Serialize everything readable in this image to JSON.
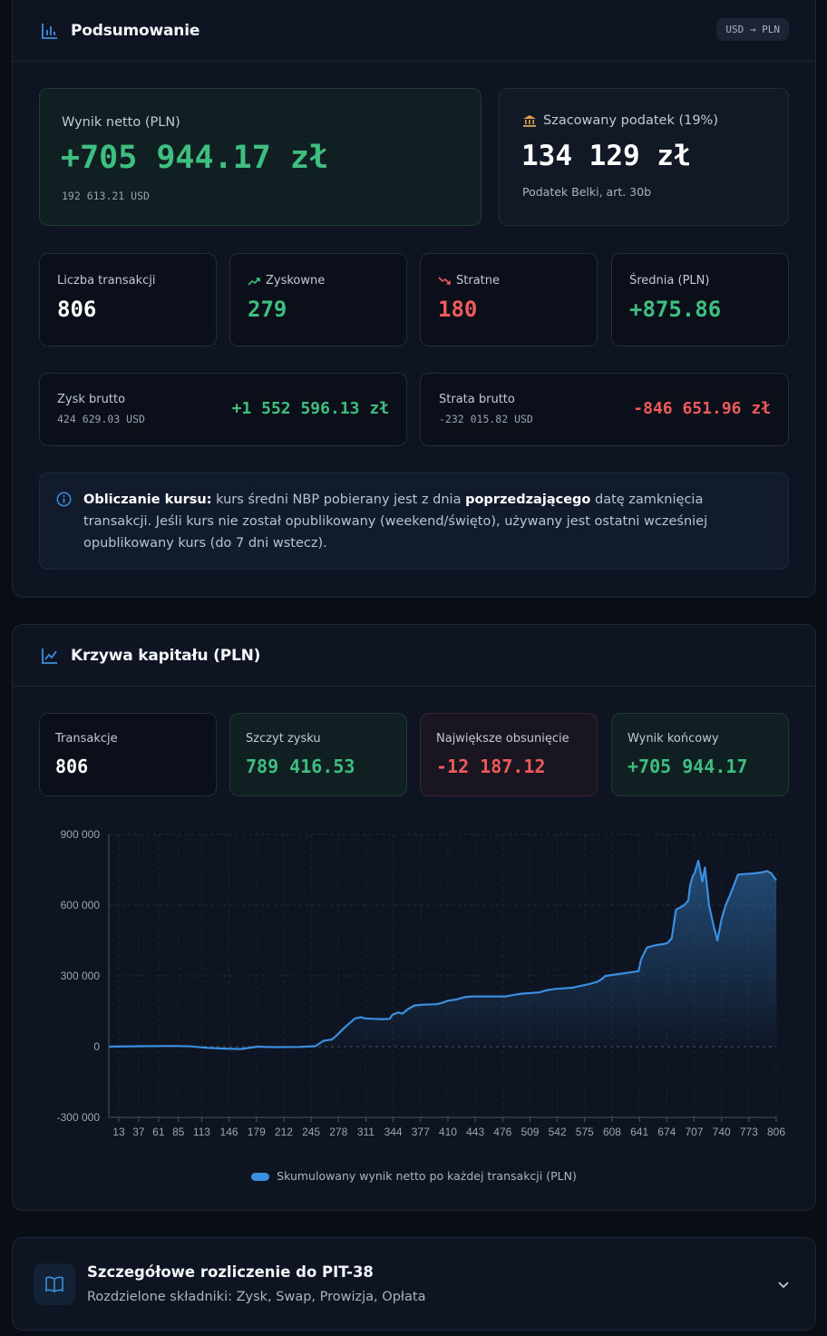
{
  "summary": {
    "title": "Podsumowanie",
    "currency_badge": "USD → PLN",
    "net": {
      "label": "Wynik netto (PLN)",
      "value": "+705 944.17 zł",
      "usd": "192 613.21 USD"
    },
    "tax": {
      "label": "Szacowany podatek (19%)",
      "value": "134 129 zł",
      "note": "Podatek Belki, art. 30b"
    },
    "stats": [
      {
        "label": "Liczba transakcji",
        "value": "806"
      },
      {
        "label": "Zyskowne",
        "value": "279"
      },
      {
        "label": "Stratne",
        "value": "180"
      },
      {
        "label": "Średnia (PLN)",
        "value": "+875.86"
      }
    ],
    "gross_profit": {
      "label": "Zysk brutto",
      "usd": "424 629.03 USD",
      "value": "+1 552 596.13 zł"
    },
    "gross_loss": {
      "label": "Strata brutto",
      "usd": "-232 015.82 USD",
      "value": "-846 651.96 zł"
    },
    "info": {
      "bold1": "Obliczanie kursu:",
      "text1": " kurs średni NBP pobierany jest z dnia ",
      "bold2": "poprzedzającego",
      "text2": " datę zamknięcia transakcji. Jeśli kurs nie został opublikowany (weekend/święto), używany jest ostatni wcześniej opublikowany kurs (do 7 dni wstecz)."
    }
  },
  "equity": {
    "title": "Krzywa kapitału (PLN)",
    "stats": [
      {
        "label": "Transakcje",
        "value": "806"
      },
      {
        "label": "Szczyt zysku",
        "value": "789 416.53"
      },
      {
        "label": "Największe obsunięcie",
        "value": "-12 187.12"
      },
      {
        "label": "Wynik końcowy",
        "value": "+705 944.17"
      }
    ],
    "legend": "Skumulowany wynik netto po każdej transakcji (PLN)"
  },
  "pit": {
    "title": "Szczegółowe rozliczenie do PIT-38",
    "subtitle": "Rozdzielone składniki: Zysk, Swap, Prowizja, Opłata"
  },
  "colors": {
    "accent_blue": "#3b8fe0",
    "positive": "#3fbf7f",
    "negative": "#ef5a5a",
    "tax_icon": "#e0a04a"
  },
  "icons": {
    "summary": "bar-chart-icon",
    "trend_up": "trend-up-icon",
    "trend_down": "trend-down-icon",
    "bank": "bank-icon",
    "info": "info-icon",
    "equity": "line-chart-icon",
    "book": "book-icon",
    "chevron": "chevron-down-icon"
  },
  "chart_data": {
    "type": "area",
    "title": "",
    "xlabel": "",
    "ylabel": "",
    "ylim": [
      -300000,
      900000
    ],
    "yticks": [
      -300000,
      0,
      300000,
      600000,
      900000
    ],
    "ytick_labels": [
      "-300 000",
      "0",
      "300 000",
      "600 000",
      "900 000"
    ],
    "xlim": [
      1,
      806
    ],
    "xticks": [
      13,
      37,
      61,
      85,
      113,
      146,
      179,
      212,
      245,
      278,
      311,
      344,
      377,
      410,
      443,
      476,
      509,
      542,
      575,
      608,
      641,
      674,
      707,
      740,
      773,
      806
    ],
    "grid": true,
    "legend_position": "bottom",
    "series": [
      {
        "name": "Skumulowany wynik netto po każdej transakcji (PLN)",
        "color": "#3b8fe0",
        "x": [
          1,
          40,
          80,
          100,
          120,
          140,
          160,
          180,
          200,
          230,
          250,
          260,
          270,
          275,
          285,
          290,
          298,
          305,
          310,
          320,
          330,
          340,
          343,
          350,
          355,
          362,
          370,
          380,
          395,
          400,
          405,
          410,
          420,
          430,
          440,
          460,
          480,
          490,
          500,
          520,
          530,
          540,
          560,
          580,
          585,
          590,
          595,
          600,
          620,
          640,
          643,
          650,
          660,
          670,
          675,
          680,
          685,
          690,
          695,
          700,
          702,
          705,
          708,
          712,
          717,
          720,
          725,
          730,
          735,
          740,
          745,
          750,
          760,
          780,
          790,
          795,
          800,
          806
        ],
        "y": [
          0,
          2000,
          3000,
          1000,
          -5000,
          -8000,
          -10000,
          0,
          -2000,
          -1000,
          2000,
          25000,
          30000,
          45000,
          80000,
          95000,
          120000,
          125000,
          120000,
          118000,
          117000,
          118000,
          135000,
          145000,
          140000,
          160000,
          175000,
          178000,
          180000,
          183000,
          188000,
          195000,
          200000,
          210000,
          213000,
          213000,
          213000,
          220000,
          225000,
          230000,
          240000,
          245000,
          250000,
          265000,
          270000,
          275000,
          285000,
          300000,
          310000,
          320000,
          370000,
          420000,
          430000,
          435000,
          440000,
          460000,
          580000,
          590000,
          600000,
          620000,
          680000,
          720000,
          740000,
          789000,
          700000,
          760000,
          600000,
          520000,
          450000,
          540000,
          600000,
          640000,
          730000,
          735000,
          740000,
          745000,
          735000,
          705944
        ]
      }
    ]
  }
}
